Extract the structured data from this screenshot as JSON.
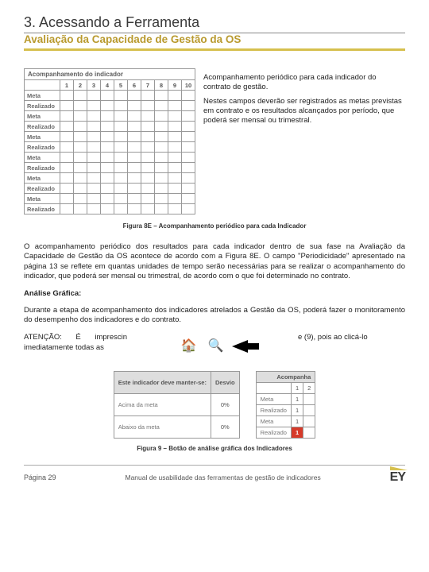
{
  "header": {
    "section_title": "3. Acessando a Ferramenta",
    "subtitle": "Avaliação da Capacidade de Gestão da OS"
  },
  "figure8e": {
    "table_title": "Acompanhamento do indicador",
    "columns": [
      "1",
      "2",
      "3",
      "4",
      "5",
      "6",
      "7",
      "8",
      "9",
      "10"
    ],
    "row_labels": [
      "Meta",
      "Realizado",
      "Meta",
      "Realizado",
      "Meta",
      "Realizado",
      "Meta",
      "Realizado",
      "Meta",
      "Realizado",
      "Meta",
      "Realizado"
    ],
    "side_p1": "Acompanhamento periódico para cada indicador do contrato de gestão.",
    "side_p2": "Nestes campos deverão ser registrados as metas previstas em contrato e os resultados alcançados por período, que poderá ser mensal ou trimestral.",
    "caption": "Figura 8E – Acompanhamento periódico para cada Indicador"
  },
  "body": {
    "p1": "O acompanhamento periódico dos resultados para cada indicador dentro de sua fase na Avaliação da Capacidade de  Gestão da OS acontece de acordo com a Figura 8E. O campo \"Periodicidade\" apresentado na página 13 se reflete em quantas unidades de tempo serão necessárias para se realizar o acompanhamento do indicador, que poderá ser mensal ou trimestral, de acordo com o que foi determinado no contrato.",
    "analise_label": "Análise Gráfica:",
    "p2": "Durante a etapa de acompanhamento dos indicadores atrelados a Gestão da OS, poderá fazer o monitoramento do desempenho dos indicadores e do contrato.",
    "attn_left": "ATENÇÃO: É imprescin imediatamente todas as",
    "attn_right": "e (9), pois ao clicá-lo"
  },
  "figure9": {
    "left_table": {
      "header": "Este indicador deve manter-se:",
      "col2_header": "Desvio",
      "rows": [
        {
          "label": "Acima da meta",
          "val": "0%"
        },
        {
          "label": "Abaixo da meta",
          "val": "0%"
        }
      ]
    },
    "right_table": {
      "header": "Acompanha",
      "cols": [
        "1",
        "2"
      ],
      "rows": [
        {
          "label": "Meta",
          "v1": "1",
          "v2": ""
        },
        {
          "label": "Realizado",
          "v1": "1",
          "v2": ""
        },
        {
          "label": "Meta",
          "v1": "1",
          "v2": ""
        },
        {
          "label": "Realizado",
          "v1": "1",
          "v2": "",
          "red": true
        }
      ]
    },
    "caption": "Figura 9 – Botão de análise gráfica dos Indicadores"
  },
  "footer": {
    "page": "Página 29",
    "center": "Manual de usabilidade das ferramentas de gestão de indicadores",
    "logo": "EY"
  },
  "colors": {
    "accent": "#d6c04e",
    "accent_text": "#b99a2e",
    "red": "#d63a2a",
    "border": "#999999"
  }
}
